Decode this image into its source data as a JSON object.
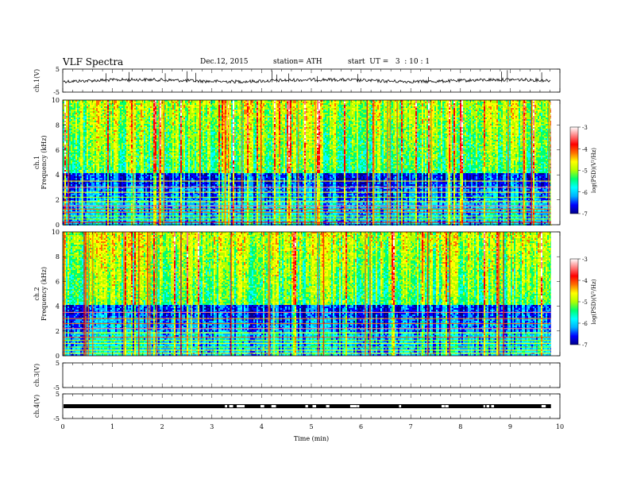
{
  "header": {
    "title": "VLF Spectra",
    "date": "Dec.12, 2015",
    "station": "station= ATH",
    "start": "start  UT =   3  : 10 : 1"
  },
  "chart_data": {
    "type": "heatmap",
    "xlabel": "Time  (min)",
    "xlim": [
      0,
      10
    ],
    "xticks": [
      "0",
      "1",
      "2",
      "3",
      "4",
      "5",
      "6",
      "7",
      "8",
      "9",
      "10"
    ],
    "data_end_min": 9.82,
    "panels": [
      {
        "kind": "waveform",
        "ylabel": "ch.1(V)",
        "ylim": [
          -5,
          5
        ],
        "yticks": [
          "5",
          "-5"
        ],
        "level": 0.0
      },
      {
        "kind": "spectrogram",
        "ylabel": [
          "ch.1",
          "Frequency  (kHz)"
        ],
        "ylim": [
          0,
          10
        ],
        "yticks": [
          "0",
          "2",
          "4",
          "6",
          "8",
          "10"
        ],
        "colorbar": {
          "label": "log(PSD)(V²/Hz)",
          "range": [
            -7,
            -3
          ],
          "ticks": [
            "-3",
            "-4",
            "-5",
            "-6",
            "-7"
          ]
        }
      },
      {
        "kind": "spectrogram",
        "ylabel": [
          "ch.2",
          "Frequency  (kHz)"
        ],
        "ylim": [
          0,
          10
        ],
        "yticks": [
          "0",
          "2",
          "4",
          "6",
          "8",
          "10"
        ],
        "colorbar": {
          "label": "log(PSD)(V²/Hz)",
          "range": [
            -7,
            -3
          ],
          "ticks": [
            "-3",
            "-4",
            "-5",
            "-6",
            "-7"
          ]
        }
      },
      {
        "kind": "empty",
        "ylabel": "ch.3(V)",
        "ylim": [
          -5,
          5
        ],
        "yticks": [
          "5",
          "-5"
        ]
      },
      {
        "kind": "pulse-train",
        "ylabel": "ch.4(V)",
        "ylim": [
          -5,
          5
        ],
        "yticks": [
          "5",
          "-5"
        ],
        "level": 0.0
      }
    ],
    "colors": {
      "colormap": [
        "#00008a",
        "#0000ff",
        "#00b0ff",
        "#00ffff",
        "#00ff70",
        "#b0ff00",
        "#ffff00",
        "#ff7000",
        "#ff0000",
        "#ff8080",
        "#ffffff"
      ]
    }
  }
}
